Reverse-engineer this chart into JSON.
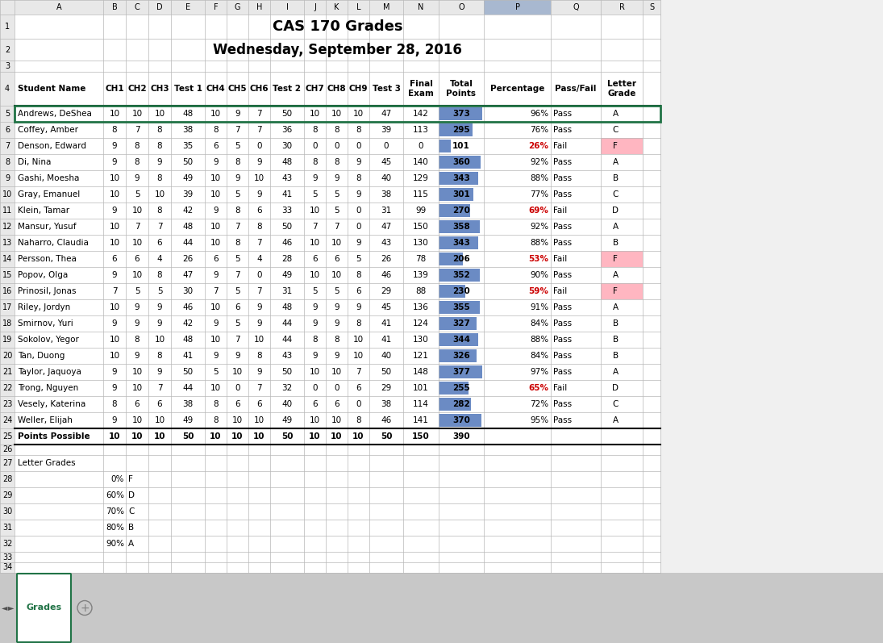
{
  "title1": "CAS 170 Grades",
  "title2": "Wednesday, September 28, 2016",
  "students": [
    {
      "name": "Andrews, DeShea",
      "ch1": 10,
      "ch2": 10,
      "ch3": 10,
      "t1": 48,
      "ch4": 10,
      "ch5": 9,
      "ch6": 7,
      "t2": 50,
      "ch7": 10,
      "ch8": 10,
      "ch9": 10,
      "t3": 47,
      "final": 142,
      "total": 373,
      "pct": "96%",
      "passfail": "Pass",
      "grade": "A"
    },
    {
      "name": "Coffey, Amber",
      "ch1": 8,
      "ch2": 7,
      "ch3": 8,
      "t1": 38,
      "ch4": 8,
      "ch5": 7,
      "ch6": 7,
      "t2": 36,
      "ch7": 8,
      "ch8": 8,
      "ch9": 8,
      "t3": 39,
      "final": 113,
      "total": 295,
      "pct": "76%",
      "passfail": "Pass",
      "grade": "C"
    },
    {
      "name": "Denson, Edward",
      "ch1": 9,
      "ch2": 8,
      "ch3": 8,
      "t1": 35,
      "ch4": 6,
      "ch5": 5,
      "ch6": 0,
      "t2": 30,
      "ch7": 0,
      "ch8": 0,
      "ch9": 0,
      "t3": 0,
      "final": 0,
      "total": 101,
      "pct": "26%",
      "passfail": "Fail",
      "grade": "F"
    },
    {
      "name": "Di, Nina",
      "ch1": 9,
      "ch2": 8,
      "ch3": 9,
      "t1": 50,
      "ch4": 9,
      "ch5": 8,
      "ch6": 9,
      "t2": 48,
      "ch7": 8,
      "ch8": 8,
      "ch9": 9,
      "t3": 45,
      "final": 140,
      "total": 360,
      "pct": "92%",
      "passfail": "Pass",
      "grade": "A"
    },
    {
      "name": "Gashi, Moesha",
      "ch1": 10,
      "ch2": 9,
      "ch3": 8,
      "t1": 49,
      "ch4": 10,
      "ch5": 9,
      "ch6": 10,
      "t2": 43,
      "ch7": 9,
      "ch8": 9,
      "ch9": 8,
      "t3": 40,
      "final": 129,
      "total": 343,
      "pct": "88%",
      "passfail": "Pass",
      "grade": "B"
    },
    {
      "name": "Gray, Emanuel",
      "ch1": 10,
      "ch2": 5,
      "ch3": 10,
      "t1": 39,
      "ch4": 10,
      "ch5": 5,
      "ch6": 9,
      "t2": 41,
      "ch7": 5,
      "ch8": 5,
      "ch9": 9,
      "t3": 38,
      "final": 115,
      "total": 301,
      "pct": "77%",
      "passfail": "Pass",
      "grade": "C"
    },
    {
      "name": "Klein, Tamar",
      "ch1": 9,
      "ch2": 10,
      "ch3": 8,
      "t1": 42,
      "ch4": 9,
      "ch5": 8,
      "ch6": 6,
      "t2": 33,
      "ch7": 10,
      "ch8": 5,
      "ch9": 0,
      "t3": 31,
      "final": 99,
      "total": 270,
      "pct": "69%",
      "passfail": "Fail",
      "grade": "D"
    },
    {
      "name": "Mansur, Yusuf",
      "ch1": 10,
      "ch2": 7,
      "ch3": 7,
      "t1": 48,
      "ch4": 10,
      "ch5": 7,
      "ch6": 8,
      "t2": 50,
      "ch7": 7,
      "ch8": 7,
      "ch9": 0,
      "t3": 47,
      "final": 150,
      "total": 358,
      "pct": "92%",
      "passfail": "Pass",
      "grade": "A"
    },
    {
      "name": "Naharro, Claudia",
      "ch1": 10,
      "ch2": 10,
      "ch3": 6,
      "t1": 44,
      "ch4": 10,
      "ch5": 8,
      "ch6": 7,
      "t2": 46,
      "ch7": 10,
      "ch8": 10,
      "ch9": 9,
      "t3": 43,
      "final": 130,
      "total": 343,
      "pct": "88%",
      "passfail": "Pass",
      "grade": "B"
    },
    {
      "name": "Persson, Thea",
      "ch1": 6,
      "ch2": 6,
      "ch3": 4,
      "t1": 26,
      "ch4": 6,
      "ch5": 5,
      "ch6": 4,
      "t2": 28,
      "ch7": 6,
      "ch8": 6,
      "ch9": 5,
      "t3": 26,
      "final": 78,
      "total": 206,
      "pct": "53%",
      "passfail": "Fail",
      "grade": "F"
    },
    {
      "name": "Popov, Olga",
      "ch1": 9,
      "ch2": 10,
      "ch3": 8,
      "t1": 47,
      "ch4": 9,
      "ch5": 7,
      "ch6": 0,
      "t2": 49,
      "ch7": 10,
      "ch8": 10,
      "ch9": 8,
      "t3": 46,
      "final": 139,
      "total": 352,
      "pct": "90%",
      "passfail": "Pass",
      "grade": "A"
    },
    {
      "name": "Prinosil, Jonas",
      "ch1": 7,
      "ch2": 5,
      "ch3": 5,
      "t1": 30,
      "ch4": 7,
      "ch5": 5,
      "ch6": 7,
      "t2": 31,
      "ch7": 5,
      "ch8": 5,
      "ch9": 6,
      "t3": 29,
      "final": 88,
      "total": 230,
      "pct": "59%",
      "passfail": "Fail",
      "grade": "F"
    },
    {
      "name": "Riley, Jordyn",
      "ch1": 10,
      "ch2": 9,
      "ch3": 9,
      "t1": 46,
      "ch4": 10,
      "ch5": 6,
      "ch6": 9,
      "t2": 48,
      "ch7": 9,
      "ch8": 9,
      "ch9": 9,
      "t3": 45,
      "final": 136,
      "total": 355,
      "pct": "91%",
      "passfail": "Pass",
      "grade": "A"
    },
    {
      "name": "Smirnov, Yuri",
      "ch1": 9,
      "ch2": 9,
      "ch3": 9,
      "t1": 42,
      "ch4": 9,
      "ch5": 5,
      "ch6": 9,
      "t2": 44,
      "ch7": 9,
      "ch8": 9,
      "ch9": 8,
      "t3": 41,
      "final": 124,
      "total": 327,
      "pct": "84%",
      "passfail": "Pass",
      "grade": "B"
    },
    {
      "name": "Sokolov, Yegor",
      "ch1": 10,
      "ch2": 8,
      "ch3": 10,
      "t1": 48,
      "ch4": 10,
      "ch5": 7,
      "ch6": 10,
      "t2": 44,
      "ch7": 8,
      "ch8": 8,
      "ch9": 10,
      "t3": 41,
      "final": 130,
      "total": 344,
      "pct": "88%",
      "passfail": "Pass",
      "grade": "B"
    },
    {
      "name": "Tan, Duong",
      "ch1": 10,
      "ch2": 9,
      "ch3": 8,
      "t1": 41,
      "ch4": 9,
      "ch5": 9,
      "ch6": 8,
      "t2": 43,
      "ch7": 9,
      "ch8": 9,
      "ch9": 10,
      "t3": 40,
      "final": 121,
      "total": 326,
      "pct": "84%",
      "passfail": "Pass",
      "grade": "B"
    },
    {
      "name": "Taylor, Jaquoya",
      "ch1": 9,
      "ch2": 10,
      "ch3": 9,
      "t1": 50,
      "ch4": 5,
      "ch5": 10,
      "ch6": 9,
      "t2": 50,
      "ch7": 10,
      "ch8": 10,
      "ch9": 7,
      "t3": 50,
      "final": 148,
      "total": 377,
      "pct": "97%",
      "passfail": "Pass",
      "grade": "A"
    },
    {
      "name": "Trong, Nguyen",
      "ch1": 9,
      "ch2": 10,
      "ch3": 7,
      "t1": 44,
      "ch4": 10,
      "ch5": 0,
      "ch6": 7,
      "t2": 32,
      "ch7": 0,
      "ch8": 0,
      "ch9": 6,
      "t3": 29,
      "final": 101,
      "total": 255,
      "pct": "65%",
      "passfail": "Fail",
      "grade": "D"
    },
    {
      "name": "Vesely, Katerina",
      "ch1": 8,
      "ch2": 6,
      "ch3": 6,
      "t1": 38,
      "ch4": 8,
      "ch5": 6,
      "ch6": 6,
      "t2": 40,
      "ch7": 6,
      "ch8": 6,
      "ch9": 0,
      "t3": 38,
      "final": 114,
      "total": 282,
      "pct": "72%",
      "passfail": "Pass",
      "grade": "C"
    },
    {
      "name": "Weller, Elijah",
      "ch1": 9,
      "ch2": 10,
      "ch3": 10,
      "t1": 49,
      "ch4": 8,
      "ch5": 10,
      "ch6": 10,
      "t2": 49,
      "ch7": 10,
      "ch8": 10,
      "ch9": 8,
      "t3": 46,
      "final": 141,
      "total": 370,
      "pct": "95%",
      "passfail": "Pass",
      "grade": "A"
    }
  ],
  "points_possible": {
    "name": "Points Possible",
    "ch1": 10,
    "ch2": 10,
    "ch3": 10,
    "t1": 50,
    "ch4": 10,
    "ch5": 10,
    "ch6": 10,
    "t2": 50,
    "ch7": 10,
    "ch8": 10,
    "ch9": 10,
    "t3": 50,
    "final": 150,
    "total": 390
  },
  "letter_grades_section": [
    {
      "pct": "0%",
      "grade": "F"
    },
    {
      "pct": "60%",
      "grade": "D"
    },
    {
      "pct": "70%",
      "grade": "C"
    },
    {
      "pct": "80%",
      "grade": "B"
    },
    {
      "pct": "90%",
      "grade": "A"
    }
  ],
  "bar_color": "#5b7fbe",
  "bar_max": 390,
  "fail_pct_color": "#cc0000",
  "pass_pct_color": "#000000",
  "fail_grade_bg": "#ffb6c1",
  "row_header_bg": "#e8e8e8",
  "col_header_bg": "#e8e8e8",
  "col_P_header_bg": "#a8b8d0",
  "grid_color": "#b8b8b8",
  "white": "#ffffff",
  "sheet_bg": "#f0f0f0",
  "green_border": "#217346",
  "tab_green": "#217346"
}
